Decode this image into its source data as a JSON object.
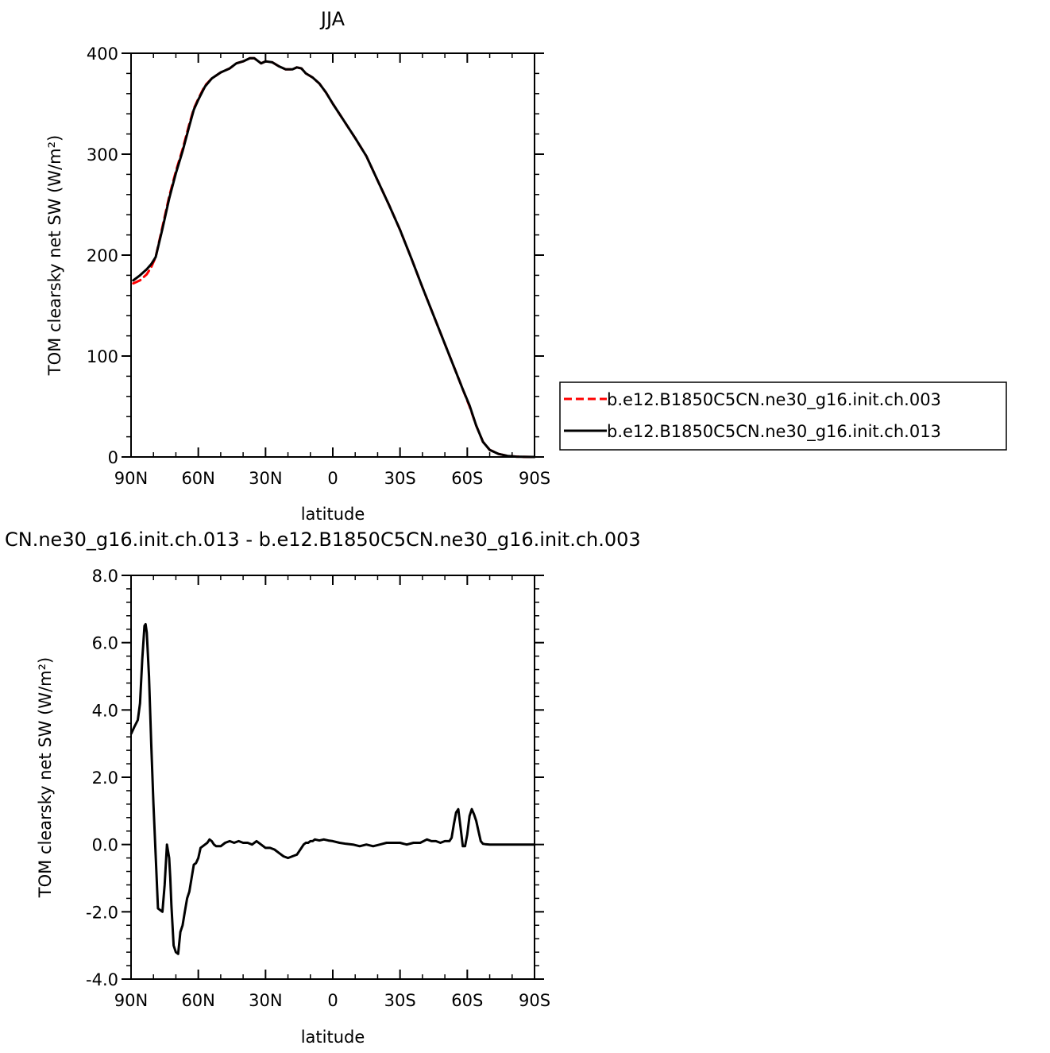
{
  "chart_data": [
    {
      "type": "line",
      "title": "JJA",
      "xlabel": "latitude",
      "ylabel": "TOM clearsky net SW (W/m²)",
      "x_ticks": [
        90,
        60,
        30,
        0,
        -30,
        -60,
        -90
      ],
      "x_tick_labels": [
        "90N",
        "60N",
        "30N",
        "0",
        "30S",
        "60S",
        "90S"
      ],
      "xlim": [
        90,
        -90
      ],
      "y_ticks": [
        0,
        100,
        200,
        300,
        400
      ],
      "y_tick_labels": [
        "0",
        "100",
        "200",
        "300",
        "400"
      ],
      "ylim": [
        0,
        400
      ],
      "legend_position": "right",
      "grid": false,
      "series": [
        {
          "name": "b.e12.B1850C5CN.ne30_g16.init.ch.003",
          "color": "#ff0000",
          "style": "dashed",
          "x": [
            89,
            86,
            83,
            81,
            79,
            76,
            73,
            70,
            67,
            64,
            62,
            60,
            57,
            54,
            50,
            46,
            43,
            40,
            37,
            35,
            32,
            30,
            27,
            24,
            21,
            18,
            16,
            14,
            12,
            9,
            6,
            3,
            0,
            -5,
            -10,
            -15,
            -20,
            -25,
            -30,
            -35,
            -40,
            -45,
            -50,
            -55,
            -58,
            -61,
            -64,
            -67,
            -70,
            -74,
            -78,
            -82,
            -86,
            -90
          ],
          "y": [
            172,
            175,
            181,
            188,
            198,
            228,
            258,
            283,
            305,
            330,
            345,
            355,
            368,
            375,
            381,
            385,
            390,
            392,
            395,
            395,
            390,
            392,
            391,
            387,
            384,
            384,
            386,
            385,
            380,
            376,
            370,
            361,
            350,
            333,
            316,
            298,
            274,
            250,
            225,
            197,
            168,
            140,
            112,
            84,
            67,
            50,
            31,
            15,
            7,
            3,
            1,
            0.3,
            0.1,
            0
          ]
        },
        {
          "name": "b.e12.B1850C5CN.ne30_g16.init.ch.013",
          "color": "#000000",
          "style": "solid",
          "x": [
            89,
            86,
            83,
            81,
            79,
            76,
            73,
            70,
            67,
            64,
            62,
            60,
            57,
            54,
            50,
            46,
            43,
            40,
            37,
            35,
            32,
            30,
            27,
            24,
            21,
            18,
            16,
            14,
            12,
            9,
            6,
            3,
            0,
            -5,
            -10,
            -15,
            -20,
            -25,
            -30,
            -35,
            -40,
            -45,
            -50,
            -55,
            -58,
            -61,
            -64,
            -67,
            -70,
            -74,
            -78,
            -82,
            -86,
            -90
          ],
          "y": [
            175,
            180,
            186,
            191,
            198,
            226,
            256,
            281,
            303,
            328,
            344,
            354,
            367,
            375,
            381,
            385,
            390,
            392,
            395,
            395,
            390,
            392,
            391,
            387,
            384,
            384,
            386,
            385,
            380,
            376,
            370,
            361,
            350,
            333,
            316,
            298,
            274,
            250,
            225,
            197,
            168,
            140,
            112,
            84,
            67,
            51,
            31,
            15,
            7,
            3,
            1,
            0.3,
            0.1,
            0
          ]
        }
      ]
    },
    {
      "type": "line",
      "title": "CN.ne30_g16.init.ch.013 - b.e12.B1850C5CN.ne30_g16.init.ch.003",
      "xlabel": "latitude",
      "ylabel": "TOM clearsky net SW (W/m²)",
      "x_ticks": [
        90,
        60,
        30,
        0,
        -30,
        -60,
        -90
      ],
      "x_tick_labels": [
        "90N",
        "60N",
        "30N",
        "0",
        "30S",
        "60S",
        "90S"
      ],
      "xlim": [
        90,
        -90
      ],
      "y_ticks": [
        -4,
        -2,
        0,
        2,
        4,
        6,
        8
      ],
      "y_tick_labels": [
        "-4.0",
        "-2.0",
        "0.0",
        "2.0",
        "4.0",
        "6.0",
        "8.0"
      ],
      "ylim": [
        -4,
        8
      ],
      "grid": false,
      "series": [
        {
          "color": "#000000",
          "style": "solid",
          "x": [
            89.9,
            88.5,
            87,
            86,
            85,
            84,
            83.5,
            83,
            82,
            81,
            80,
            78,
            76,
            75,
            74,
            73,
            72.5,
            72,
            71,
            70,
            69,
            68,
            67,
            66,
            65,
            64,
            63,
            62,
            61,
            60,
            59,
            58,
            57,
            56,
            55,
            54,
            53,
            52,
            51,
            50,
            48,
            46,
            44,
            42,
            40,
            38,
            36,
            34,
            32,
            31,
            30,
            28,
            26,
            24,
            22,
            20,
            18,
            16,
            14,
            13,
            12,
            11,
            10,
            9,
            8,
            6,
            4,
            2,
            0,
            -3,
            -6,
            -9,
            -12,
            -15,
            -18,
            -21,
            -24,
            -27,
            -30,
            -33,
            -36,
            -39,
            -42,
            -44,
            -46,
            -48,
            -50,
            -52,
            -53,
            -54,
            -55,
            -56,
            -57,
            -58,
            -59,
            -60,
            -61,
            -62,
            -63,
            -64,
            -65,
            -66,
            -67,
            -68,
            -70,
            -73,
            -76,
            -80,
            -84,
            -90
          ],
          "y": [
            3.3,
            3.5,
            3.7,
            4.2,
            5.5,
            6.5,
            6.55,
            6.3,
            5.0,
            3.0,
            1.2,
            -1.9,
            -2.0,
            -1.2,
            0.0,
            -0.4,
            -1.0,
            -1.8,
            -3.0,
            -3.2,
            -3.25,
            -2.6,
            -2.4,
            -2.0,
            -1.6,
            -1.4,
            -1.0,
            -0.6,
            -0.55,
            -0.4,
            -0.1,
            -0.05,
            0.0,
            0.05,
            0.15,
            0.1,
            0.0,
            -0.05,
            -0.05,
            -0.05,
            0.05,
            0.1,
            0.05,
            0.1,
            0.05,
            0.05,
            0.0,
            0.1,
            0.0,
            -0.05,
            -0.1,
            -0.1,
            -0.15,
            -0.25,
            -0.35,
            -0.4,
            -0.35,
            -0.3,
            -0.1,
            0.0,
            0.05,
            0.05,
            0.1,
            0.1,
            0.15,
            0.12,
            0.15,
            0.12,
            0.1,
            0.05,
            0.02,
            0.0,
            -0.05,
            0.0,
            -0.05,
            0.0,
            0.05,
            0.05,
            0.05,
            0.0,
            0.05,
            0.05,
            0.15,
            0.1,
            0.1,
            0.05,
            0.1,
            0.1,
            0.2,
            0.6,
            0.95,
            1.05,
            0.5,
            -0.05,
            -0.05,
            0.3,
            0.85,
            1.05,
            0.9,
            0.7,
            0.4,
            0.1,
            0.02,
            0.01,
            0.0,
            0.0,
            0.0,
            0.0,
            0.0,
            0.0
          ]
        }
      ]
    }
  ]
}
